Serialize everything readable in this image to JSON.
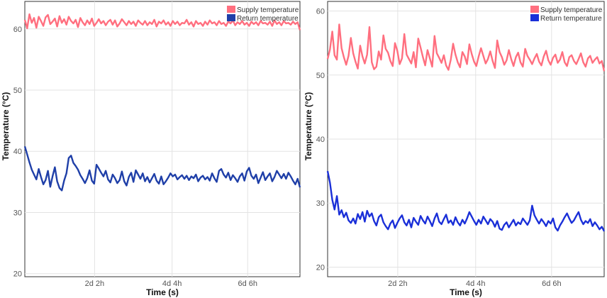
{
  "chart_data": [
    {
      "type": "line",
      "xlabel": "Time (s)",
      "ylabel": "Temperature (°C)",
      "ylim": [
        19.5,
        64.5
      ],
      "yticks": [
        20,
        30,
        40,
        50,
        60
      ],
      "xlim": [
        0,
        7.1
      ],
      "xticks": [
        {
          "value": 1.8,
          "label": "2d 2h"
        },
        {
          "value": 3.8,
          "label": "4d 4h"
        },
        {
          "value": 5.75,
          "label": "6d 6h"
        }
      ],
      "grid": true,
      "legend": "top-right",
      "series": [
        {
          "name": "Supply temperature",
          "color": "#ff6f7f",
          "values": [
            61.5,
            60.1,
            62.4,
            61.0,
            61.8,
            60.2,
            62.0,
            61.3,
            60.5,
            61.9,
            62.3,
            60.8,
            61.2,
            61.7,
            60.4,
            62.1,
            61.0,
            61.6,
            60.7,
            62.0,
            61.3,
            60.9,
            61.5,
            60.3,
            61.8,
            61.1,
            60.6,
            61.4,
            60.8,
            61.7,
            60.5,
            61.0,
            61.6,
            60.9,
            61.3,
            60.6,
            61.2,
            61.5,
            60.7,
            61.4,
            60.4,
            60.9,
            61.6,
            61.1,
            60.6,
            61.3,
            60.8,
            61.2,
            60.5,
            61.4,
            61.0,
            60.7,
            61.3,
            60.6,
            61.1,
            60.8,
            61.5,
            60.4,
            61.2,
            60.9,
            61.4,
            60.7,
            61.1,
            60.5,
            61.3,
            60.8,
            61.2,
            60.6,
            61.0,
            60.9,
            61.5,
            60.7,
            61.1,
            60.4,
            61.3,
            60.8,
            61.0,
            60.5,
            61.2,
            60.7,
            61.4,
            60.9,
            61.1,
            60.6,
            61.3,
            60.8,
            61.0,
            60.5,
            61.2,
            60.9,
            61.4,
            60.6,
            61.1,
            60.8,
            61.3,
            60.7,
            61.0,
            60.5,
            61.2,
            60.8,
            61.1,
            60.6,
            61.3,
            60.9,
            61.0,
            60.7,
            61.2,
            60.5,
            61.4,
            60.8,
            61.1,
            60.6,
            61.3,
            60.9,
            61.0,
            60.7,
            61.2,
            60.8,
            61.1,
            59.8
          ]
        },
        {
          "name": "Return temperature",
          "color": "#1f3fa8",
          "values": [
            40.8,
            39.5,
            38.2,
            37.0,
            36.2,
            35.4,
            37.1,
            35.8,
            34.6,
            35.3,
            36.8,
            34.2,
            35.9,
            37.4,
            35.1,
            34.0,
            33.6,
            35.2,
            36.4,
            38.9,
            39.3,
            38.1,
            37.6,
            37.0,
            36.1,
            35.5,
            34.8,
            35.6,
            36.9,
            35.2,
            34.7,
            37.8,
            37.2,
            36.5,
            35.9,
            36.8,
            35.4,
            34.9,
            36.2,
            35.6,
            34.8,
            35.3,
            36.7,
            35.1,
            34.4,
            35.8,
            36.5,
            35.0,
            36.9,
            36.2,
            35.5,
            36.4,
            35.1,
            35.8,
            34.9,
            35.6,
            36.3,
            35.2,
            34.7,
            35.9,
            34.6,
            35.1,
            35.7,
            36.4,
            35.9,
            36.2,
            35.4,
            35.8,
            36.1,
            35.5,
            36.0,
            35.3,
            35.9,
            35.6,
            36.2,
            35.1,
            35.7,
            36.0,
            35.4,
            35.8,
            35.2,
            36.4,
            35.6,
            35.0,
            36.8,
            37.1,
            36.2,
            35.7,
            36.5,
            35.3,
            36.1,
            35.6,
            35.0,
            35.9,
            36.4,
            35.2,
            36.7,
            37.3,
            36.0,
            35.5,
            36.2,
            34.8,
            35.7,
            36.6,
            35.3,
            35.9,
            36.4,
            35.1,
            35.8,
            36.8,
            36.2,
            35.6,
            36.3,
            35.5,
            36.5,
            35.9,
            35.2,
            34.6,
            35.5,
            34.1
          ]
        }
      ]
    },
    {
      "type": "line",
      "xlabel": "Time (s)",
      "ylabel": "Temperature (°C)",
      "ylim": [
        18.5,
        61.5
      ],
      "yticks": [
        20,
        30,
        40,
        50,
        60
      ],
      "xlim": [
        0,
        7.1
      ],
      "xticks": [
        {
          "value": 1.8,
          "label": "2d 2h"
        },
        {
          "value": 3.8,
          "label": "4d 4h"
        },
        {
          "value": 5.75,
          "label": "6d 6h"
        }
      ],
      "grid": true,
      "legend": "top-right",
      "series": [
        {
          "name": "Supply temperature",
          "color": "#ff6f7f",
          "values": [
            52.5,
            54.0,
            56.8,
            53.1,
            52.4,
            57.9,
            54.2,
            52.8,
            51.6,
            53.0,
            55.8,
            53.4,
            52.1,
            51.0,
            54.6,
            52.9,
            51.8,
            53.2,
            57.5,
            52.0,
            50.9,
            51.3,
            53.7,
            52.4,
            56.2,
            54.1,
            53.5,
            52.2,
            51.4,
            55.0,
            53.8,
            51.7,
            52.6,
            56.4,
            53.2,
            52.5,
            51.8,
            53.6,
            51.2,
            55.7,
            54.3,
            52.8,
            51.5,
            53.9,
            52.6,
            51.3,
            56.1,
            53.4,
            52.7,
            51.9,
            53.1,
            51.5,
            50.8,
            52.4,
            54.9,
            53.2,
            52.0,
            51.2,
            53.6,
            52.9,
            51.7,
            54.8,
            53.3,
            52.1,
            51.4,
            52.9,
            54.2,
            53.0,
            51.8,
            52.5,
            53.7,
            52.2,
            51.1,
            55.4,
            53.6,
            52.8,
            51.6,
            52.3,
            53.9,
            52.5,
            51.4,
            52.8,
            53.5,
            52.0,
            51.3,
            54.1,
            53.0,
            52.4,
            51.7,
            52.6,
            53.3,
            52.1,
            51.5,
            52.9,
            53.8,
            52.3,
            51.6,
            52.7,
            53.2,
            51.9,
            52.4,
            53.6,
            52.0,
            51.4,
            52.8,
            53.1,
            52.2,
            51.7,
            52.5,
            53.4,
            52.0,
            51.3,
            52.6,
            53.0,
            51.9,
            52.4,
            52.8,
            51.8,
            52.2,
            50.6
          ]
        },
        {
          "name": "Return temperature",
          "color": "#1a2fd8",
          "values": [
            35.0,
            33.2,
            30.5,
            29.0,
            31.1,
            28.2,
            28.9,
            27.8,
            28.5,
            27.3,
            26.9,
            27.6,
            26.8,
            28.3,
            27.5,
            28.6,
            27.1,
            28.8,
            27.9,
            28.4,
            27.2,
            26.5,
            27.8,
            28.2,
            27.0,
            26.4,
            25.9,
            26.8,
            27.3,
            26.1,
            26.9,
            27.6,
            28.1,
            27.0,
            26.5,
            27.4,
            26.2,
            27.7,
            27.1,
            26.6,
            28.0,
            27.3,
            26.8,
            27.9,
            27.2,
            26.4,
            27.6,
            28.4,
            27.1,
            26.7,
            27.5,
            28.2,
            26.9,
            27.3,
            26.6,
            27.8,
            27.0,
            26.5,
            27.4,
            26.8,
            27.6,
            28.6,
            27.9,
            27.2,
            26.6,
            27.4,
            26.8,
            27.9,
            27.3,
            26.7,
            27.5,
            27.1,
            26.3,
            27.2,
            26.0,
            25.8,
            26.6,
            27.0,
            26.2,
            26.8,
            27.4,
            26.5,
            27.0,
            26.7,
            27.6,
            27.1,
            26.6,
            27.3,
            29.6,
            28.1,
            27.4,
            26.8,
            27.5,
            27.0,
            26.4,
            27.2,
            26.8,
            27.6,
            26.2,
            25.7,
            26.5,
            27.1,
            27.8,
            28.4,
            27.6,
            26.9,
            27.3,
            28.0,
            28.6,
            27.4,
            26.7,
            27.2,
            26.9,
            27.5,
            26.4,
            27.0,
            26.5,
            25.9,
            26.3,
            25.6
          ]
        }
      ]
    }
  ]
}
